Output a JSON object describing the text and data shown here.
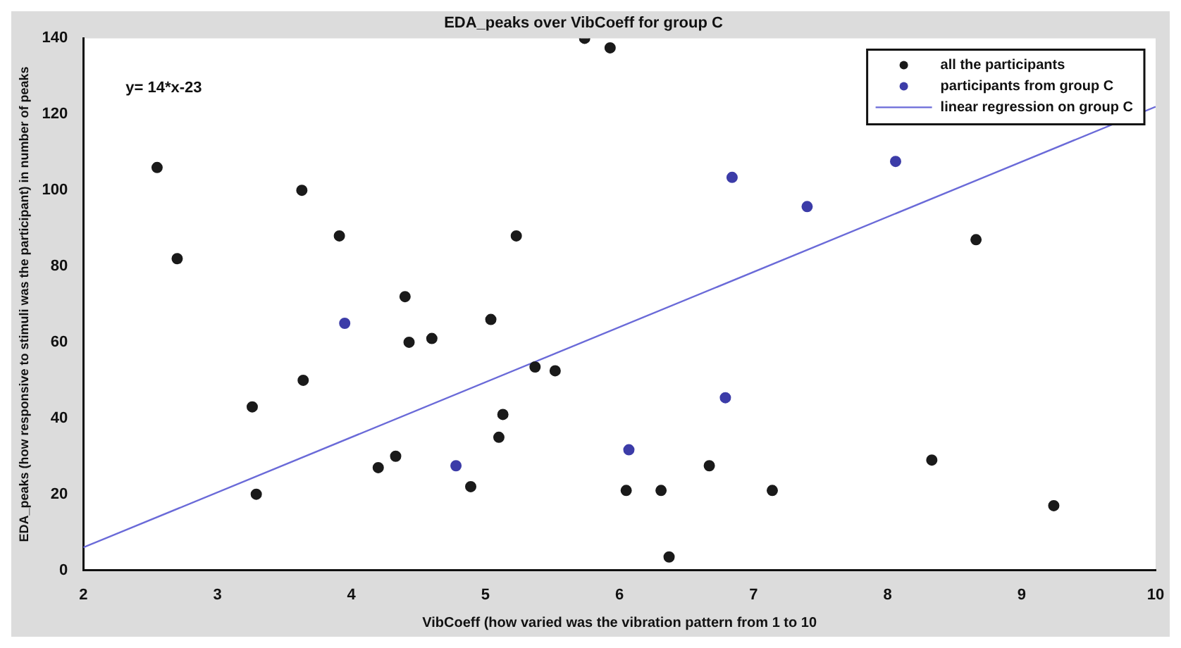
{
  "chart_data": {
    "type": "scatter",
    "title": "EDA_peaks over VibCoeff for group C",
    "xlabel": "VibCoeff (how varied was the vibration pattern from 1 to 10",
    "ylabel": "EDA_peaks (how responsive to stimuli was the participant) in number of peaks",
    "annotations": [
      "y= 14*x-23"
    ],
    "xlim": [
      2,
      10
    ],
    "xticks": [
      2,
      3,
      4,
      5,
      6,
      7,
      8,
      9,
      10
    ],
    "ylim": [
      0,
      140
    ],
    "yticks": [
      0,
      20,
      40,
      60,
      80,
      100,
      120,
      140
    ],
    "grid": false,
    "legend": "top right",
    "marker": "circle",
    "series": [
      {
        "name": "all the participants",
        "color": "#1a1a1a",
        "x": [
          2.55,
          2.7,
          3.26,
          3.29,
          3.63,
          3.64,
          3.91,
          4.2,
          4.33,
          4.4,
          4.43,
          4.6,
          4.89,
          5.04,
          5.1,
          5.13,
          5.23,
          5.37,
          5.52,
          5.74,
          5.93,
          6.05,
          6.31,
          6.37,
          6.67,
          7.14,
          8.33,
          8.66,
          9.24
        ],
        "values": [
          106,
          82,
          43,
          20,
          100,
          50,
          88,
          27,
          30,
          72,
          60,
          61,
          22,
          66,
          35,
          41,
          88,
          53.5,
          52.5,
          140,
          137.5,
          21,
          21,
          3.5,
          27.5,
          21,
          29,
          87,
          17
        ]
      },
      {
        "name": "participants from group C",
        "color": "#3c3ca8",
        "x": [
          3.95,
          4.78,
          6.07,
          6.79,
          6.84,
          7.4,
          8.06
        ],
        "values": [
          65,
          27.5,
          31.7,
          45.4,
          103.4,
          95.7,
          107.6
        ]
      },
      {
        "name": "linear regression on group C",
        "type": "line",
        "color": "#6a6ad8",
        "marker": "none",
        "line_style": "solid",
        "x": [
          2,
          10
        ],
        "values": [
          6,
          122
        ]
      }
    ]
  }
}
